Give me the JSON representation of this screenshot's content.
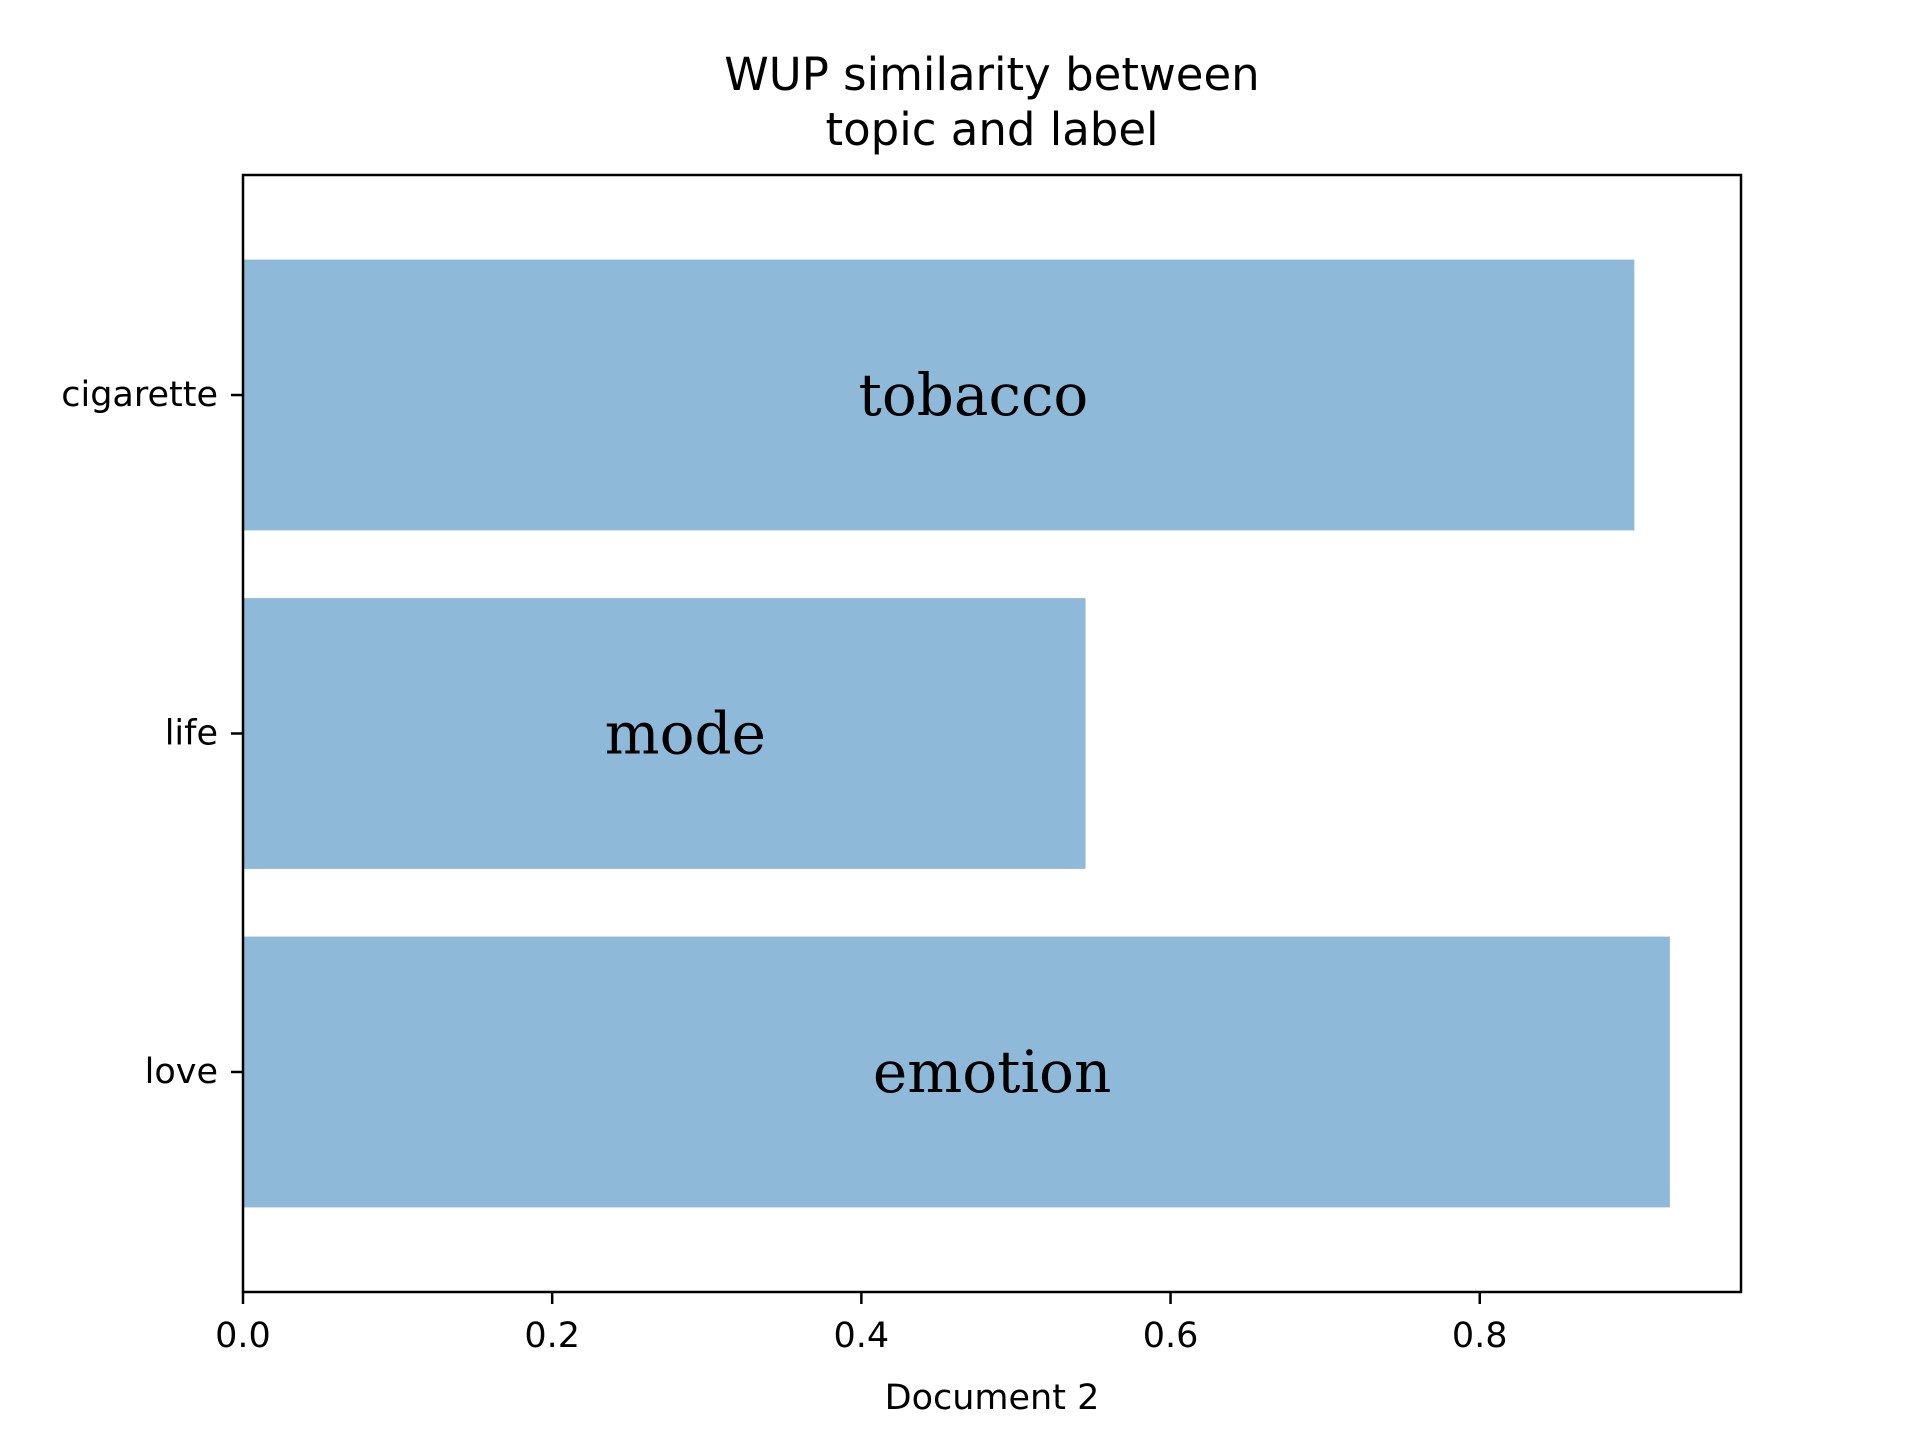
{
  "chart_data": {
    "type": "bar",
    "orientation": "horizontal",
    "title": "WUP similarity between\ntopic and label",
    "xlabel": "Document 2",
    "ylabel": "",
    "categories": [
      "cigarette",
      "life",
      "love"
    ],
    "values": [
      0.9,
      0.545,
      0.923
    ],
    "bar_labels": [
      "tobacco",
      "mode",
      "emotion"
    ],
    "xlim": [
      0,
      0.969
    ],
    "xticks": [
      0.0,
      0.2,
      0.4,
      0.6,
      0.8
    ],
    "xtick_labels": [
      "0.0",
      "0.2",
      "0.4",
      "0.6",
      "0.8"
    ],
    "bar_color": "#8fb9d9",
    "grid": false
  }
}
